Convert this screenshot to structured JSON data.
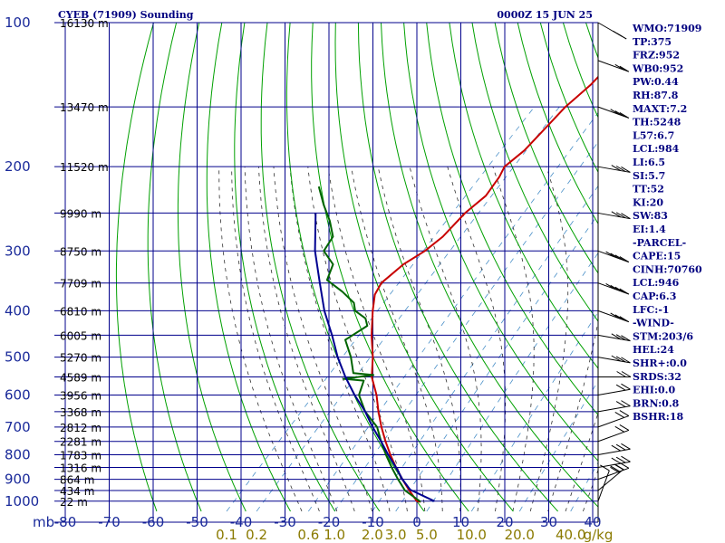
{
  "header": {
    "station": "CYEB (71909) Sounding",
    "time": "0000Z 15 JUN 25"
  },
  "chart_data": {
    "type": "line",
    "axes": {
      "pressure_labels": [
        "100",
        "200",
        "300",
        "400",
        "500",
        "600",
        "700",
        "800",
        "900",
        "1000"
      ],
      "pressure_ticks": [
        100,
        200,
        300,
        400,
        500,
        600,
        700,
        800,
        900,
        1000
      ],
      "pressure_unit": "mb",
      "temp_labels": [
        "-80",
        "-70",
        "-60",
        "-50",
        "-40",
        "-30",
        "-20",
        "-10",
        "0",
        "10",
        "20",
        "30",
        "40"
      ],
      "temp_ticks": [
        -80,
        -70,
        -60,
        -50,
        -40,
        -30,
        -20,
        -10,
        0,
        10,
        20,
        30,
        40
      ],
      "mixing_ratio_labels": [
        "0.1",
        "0.2",
        "0.6",
        "1.0",
        "2.0",
        "3.0",
        "5.0",
        "10.0",
        "20.0",
        "40.0"
      ],
      "mixing_ratio_values": [
        0.1,
        0.2,
        0.6,
        1.0,
        2.0,
        3.0,
        5.0,
        10.0,
        20.0,
        40.0
      ],
      "mixing_ratio_unit": "g/kg",
      "pressure_range": [
        100,
        1050
      ],
      "temp_range": [
        -80,
        40
      ]
    },
    "heights": [
      {
        "p": 100,
        "label": "16130 m"
      },
      {
        "p": 150,
        "label": "13470 m"
      },
      {
        "p": 200,
        "label": "11520 m"
      },
      {
        "p": 250,
        "label": "9990 m"
      },
      {
        "p": 300,
        "label": "8750 m"
      },
      {
        "p": 350,
        "label": "7709 m"
      },
      {
        "p": 400,
        "label": "6810 m"
      },
      {
        "p": 450,
        "label": "6005 m"
      },
      {
        "p": 500,
        "label": "5270 m"
      },
      {
        "p": 550,
        "label": "4589 m"
      },
      {
        "p": 600,
        "label": "3956 m"
      },
      {
        "p": 650,
        "label": "3368 m"
      },
      {
        "p": 700,
        "label": "2812 m"
      },
      {
        "p": 750,
        "label": "2281 m"
      },
      {
        "p": 800,
        "label": "1783 m"
      },
      {
        "p": 850,
        "label": "1316 m"
      },
      {
        "p": 900,
        "label": "864 m"
      },
      {
        "p": 950,
        "label": "434 m"
      },
      {
        "p": 1000,
        "label": "22 m"
      }
    ],
    "series": [
      {
        "key": "temperature",
        "color": "#c80000",
        "points": [
          [
            1003,
            1
          ],
          [
            1000,
            0
          ],
          [
            950,
            -4
          ],
          [
            900,
            -8
          ],
          [
            850,
            -12
          ],
          [
            800,
            -16
          ],
          [
            750,
            -20
          ],
          [
            700,
            -24
          ],
          [
            650,
            -28
          ],
          [
            600,
            -32
          ],
          [
            550,
            -37
          ],
          [
            500,
            -41
          ],
          [
            450,
            -46
          ],
          [
            400,
            -51
          ],
          [
            370,
            -54
          ],
          [
            350,
            -55
          ],
          [
            320,
            -54
          ],
          [
            300,
            -52
          ],
          [
            280,
            -51
          ],
          [
            250,
            -51
          ],
          [
            230,
            -50
          ],
          [
            210,
            -51
          ],
          [
            200,
            -52
          ],
          [
            185,
            -51
          ],
          [
            170,
            -51
          ],
          [
            150,
            -51
          ],
          [
            135,
            -50
          ],
          [
            120,
            -50
          ],
          [
            110,
            -50
          ],
          [
            100,
            -50
          ]
        ]
      },
      {
        "key": "dewpoint",
        "color": "#006400",
        "points": [
          [
            1003,
            1
          ],
          [
            950,
            -5
          ],
          [
            900,
            -9
          ],
          [
            850,
            -13
          ],
          [
            800,
            -17
          ],
          [
            750,
            -21
          ],
          [
            700,
            -25
          ],
          [
            650,
            -31
          ],
          [
            600,
            -36
          ],
          [
            560,
            -38
          ],
          [
            555,
            -43
          ],
          [
            545,
            -37
          ],
          [
            540,
            -42
          ],
          [
            500,
            -46
          ],
          [
            460,
            -51
          ],
          [
            430,
            -49
          ],
          [
            415,
            -51
          ],
          [
            400,
            -55
          ],
          [
            385,
            -57
          ],
          [
            365,
            -62
          ],
          [
            345,
            -68
          ],
          [
            320,
            -70
          ],
          [
            300,
            -75
          ],
          [
            280,
            -76
          ],
          [
            260,
            -80
          ],
          [
            240,
            -85
          ],
          [
            220,
            -90
          ]
        ]
      },
      {
        "key": "parcel",
        "color": "#000090",
        "points": [
          [
            1000,
            4
          ],
          [
            946,
            -4
          ],
          [
            900,
            -8
          ],
          [
            850,
            -12
          ],
          [
            800,
            -16.5
          ],
          [
            750,
            -21
          ],
          [
            700,
            -26
          ],
          [
            650,
            -31
          ],
          [
            600,
            -37
          ],
          [
            550,
            -43
          ],
          [
            500,
            -49
          ],
          [
            450,
            -55
          ],
          [
            400,
            -62
          ],
          [
            350,
            -69
          ],
          [
            300,
            -77
          ],
          [
            250,
            -85
          ]
        ]
      }
    ],
    "wind_barbs": [
      {
        "p": 1000,
        "dir": 200,
        "spd": 10
      },
      {
        "p": 950,
        "dir": 230,
        "spd": 20
      },
      {
        "p": 900,
        "dir": 250,
        "spd": 25
      },
      {
        "p": 850,
        "dir": 260,
        "spd": 25
      },
      {
        "p": 800,
        "dir": 260,
        "spd": 25
      },
      {
        "p": 750,
        "dir": 250,
        "spd": 20
      },
      {
        "p": 700,
        "dir": 250,
        "spd": 20
      },
      {
        "p": 650,
        "dir": 260,
        "spd": 15
      },
      {
        "p": 600,
        "dir": 260,
        "spd": 15
      },
      {
        "p": 550,
        "dir": 270,
        "spd": 20
      },
      {
        "p": 500,
        "dir": 280,
        "spd": 25
      },
      {
        "p": 450,
        "dir": 280,
        "spd": 25
      },
      {
        "p": 400,
        "dir": 290,
        "spd": 30
      },
      {
        "p": 350,
        "dir": 290,
        "spd": 35
      },
      {
        "p": 300,
        "dir": 290,
        "spd": 35
      },
      {
        "p": 250,
        "dir": 280,
        "spd": 30
      },
      {
        "p": 200,
        "dir": 280,
        "spd": 30
      },
      {
        "p": 150,
        "dir": 290,
        "spd": 25
      },
      {
        "p": 120,
        "dir": 290,
        "spd": 20
      },
      {
        "p": 100,
        "dir": 300,
        "spd": 15
      }
    ]
  },
  "indices": [
    "WMO:71909",
    "TP:375",
    "FRZ:952",
    "WB0:952",
    "PW:0.44",
    "RH:87.8",
    "MAXT:7.2",
    "TH:5248",
    "L57:6.7",
    "LCL:984",
    "LI:6.5",
    "SI:5.7",
    "TT:52",
    "KI:20",
    "SW:83",
    "EI:1.4",
    "-PARCEL-",
    "CAPE:15",
    "CINH:70760",
    "LCL:946",
    "CAP:6.3",
    "LFC:-1",
    "-WIND-",
    "STM:203/6",
    "HEL:24",
    "SHR+:0.0",
    "SRDS:32",
    "EHI:0.0",
    "BRN:0.8",
    "BSHR:18"
  ],
  "colors": {
    "isobar": "#00008b",
    "isotherm": "#00008b",
    "dry_adiabat": "#00a000",
    "moist_adiabat": "#303030",
    "mixing_ratio": "#4a90c8",
    "text_blue": "#000080"
  }
}
